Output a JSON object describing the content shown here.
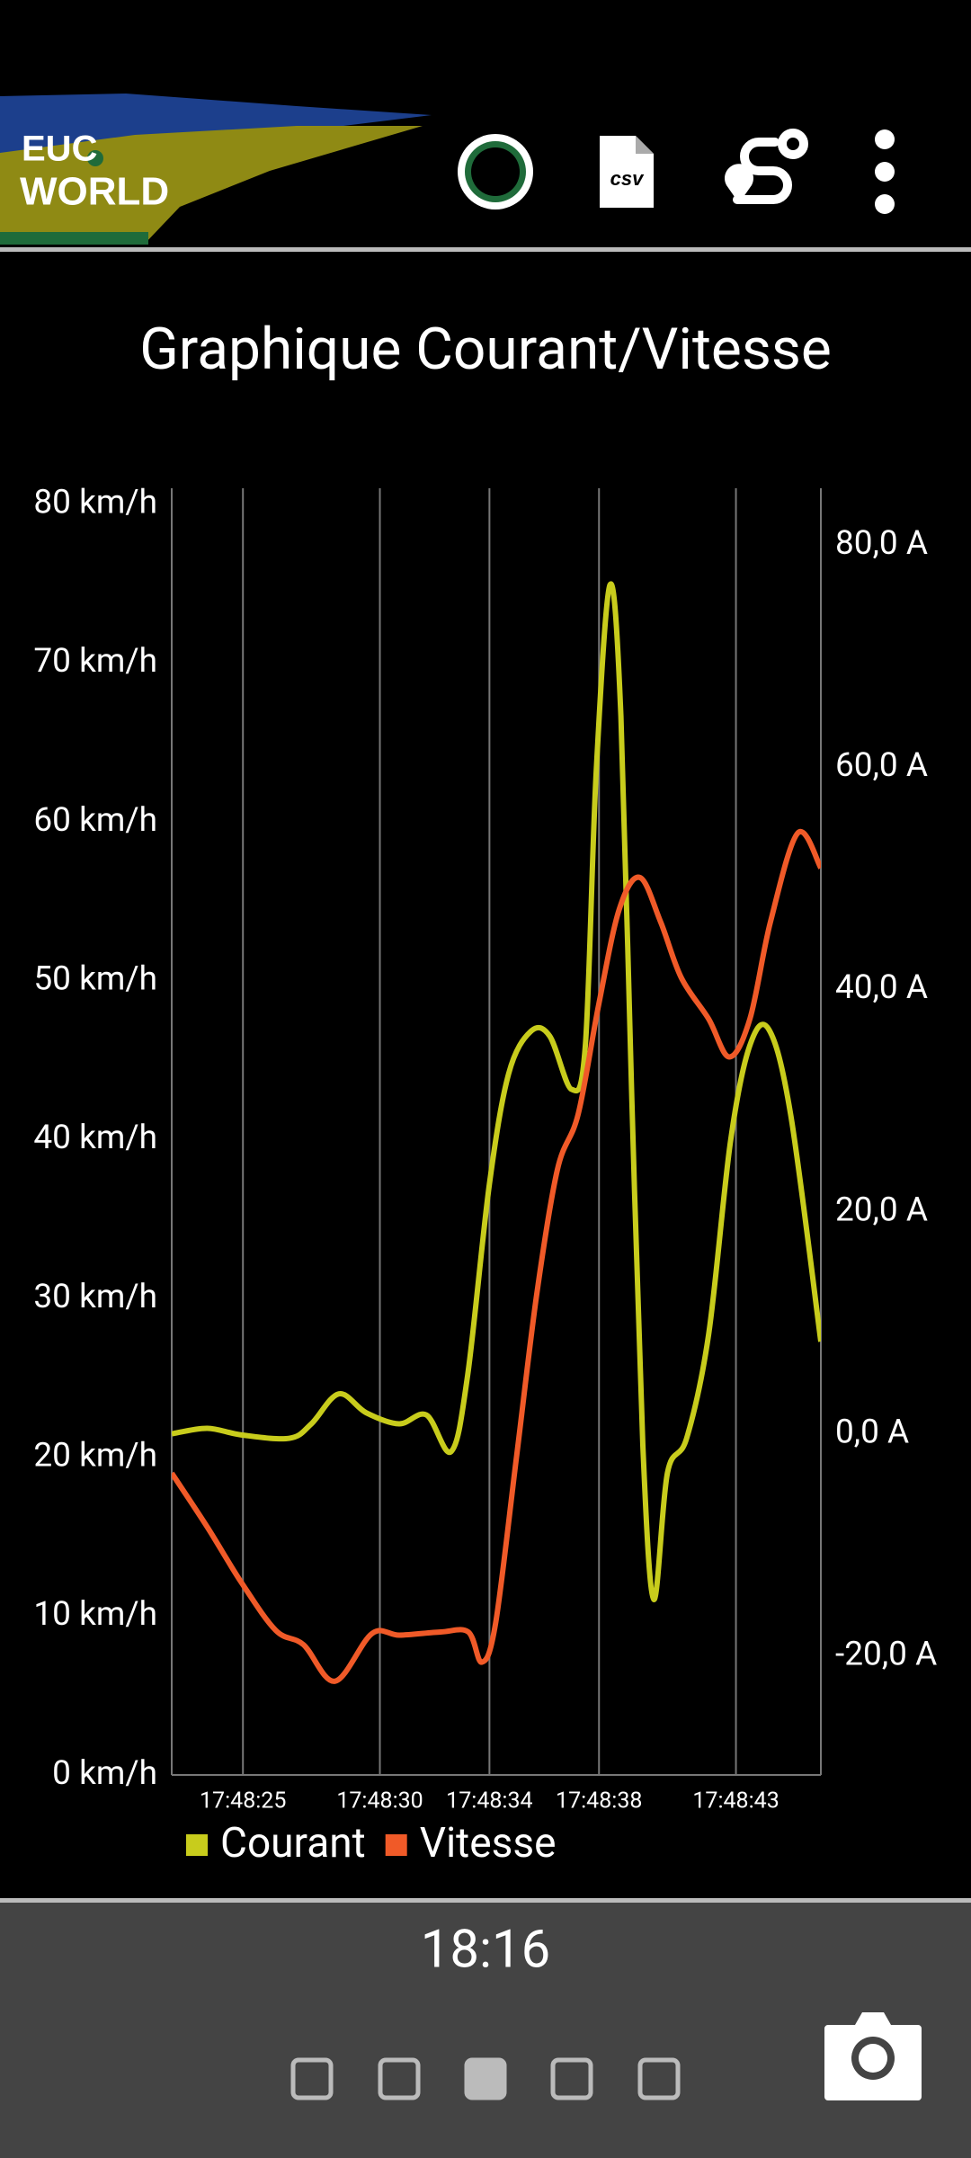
{
  "header": {
    "logo": [
      "EUC",
      "WORLD"
    ],
    "csv_icon": "csv"
  },
  "chart_data": {
    "type": "line",
    "title": "Graphique Courant/Vitesse",
    "xlim": [
      22.4,
      46.1
    ],
    "xticks": [
      {
        "value": 25,
        "label": "17:48:25"
      },
      {
        "value": 30,
        "label": "17:48:30"
      },
      {
        "value": 34,
        "label": "17:48:34"
      },
      {
        "value": 38,
        "label": "17:48:38"
      },
      {
        "value": 43,
        "label": "17:48:43"
      }
    ],
    "ylim": [
      0,
      81
    ],
    "yticks": [
      {
        "value": 0,
        "label": "0 km/h"
      },
      {
        "value": 10,
        "label": "10 km/h"
      },
      {
        "value": 20,
        "label": "20 km/h"
      },
      {
        "value": 30,
        "label": "30 km/h"
      },
      {
        "value": 40,
        "label": "40 km/h"
      },
      {
        "value": 50,
        "label": "50 km/h"
      },
      {
        "value": 60,
        "label": "60 km/h"
      },
      {
        "value": 70,
        "label": "70 km/h"
      },
      {
        "value": 80,
        "label": "80 km/h"
      }
    ],
    "y2lim": [
      -30.7,
      85.1
    ],
    "y2ticks": [
      {
        "value": -20,
        "label": "-20,0 A"
      },
      {
        "value": 0,
        "label": "0,0 A"
      },
      {
        "value": 20,
        "label": "20,0 A"
      },
      {
        "value": 40,
        "label": "40,0 A"
      },
      {
        "value": 60,
        "label": "60,0 A"
      },
      {
        "value": 80,
        "label": "80,0 A"
      }
    ],
    "grid": true,
    "series": [
      {
        "name": "Courant",
        "color": "#c8cc1c",
        "axis": "y2",
        "x": [
          22.4,
          23.7,
          24.95,
          26.7,
          27.5,
          28.5,
          29.5,
          30.7,
          31.7,
          32.6,
          33.2,
          34.0,
          34.7,
          35.5,
          36.2,
          37.0,
          37.5,
          37.9,
          38.4,
          38.8,
          39.2,
          39.6,
          40.0,
          40.5,
          41.2,
          42.0,
          42.8,
          43.5,
          44.2,
          45.0,
          46.1
        ],
        "values": [
          0,
          0.5,
          -0.1,
          -0.4,
          0.9,
          3.6,
          1.9,
          0.9,
          1.7,
          -1.6,
          5.2,
          22.5,
          32.4,
          36.2,
          35.8,
          31.0,
          34.9,
          59.7,
          76.4,
          64.6,
          30.0,
          -1.0,
          -14.9,
          -3.5,
          -0.4,
          8.9,
          26.3,
          34.9,
          36.4,
          28.7,
          8.3
        ]
      },
      {
        "name": "Vitesse",
        "color": "#f05a28",
        "x": [
          22.4,
          23.7,
          24.95,
          26.2,
          27.21,
          28.36,
          29.71,
          30.72,
          32.22,
          33.23,
          33.72,
          34.22,
          34.98,
          35.73,
          36.48,
          37.24,
          37.99,
          38.74,
          39.49,
          40.25,
          41.0,
          42.0,
          42.76,
          43.51,
          44.26,
          45.26,
          46.1
        ],
        "values": [
          19.0,
          15.6,
          12.1,
          9.1,
          8.2,
          5.9,
          8.9,
          8.8,
          9.0,
          9.0,
          7.1,
          9.5,
          19.9,
          30.3,
          38.1,
          41.6,
          48.5,
          54.5,
          56.5,
          53.7,
          50.2,
          47.6,
          45.2,
          47.6,
          53.7,
          59.3,
          57.1
        ]
      }
    ]
  },
  "footer": {
    "time": "18:16"
  }
}
